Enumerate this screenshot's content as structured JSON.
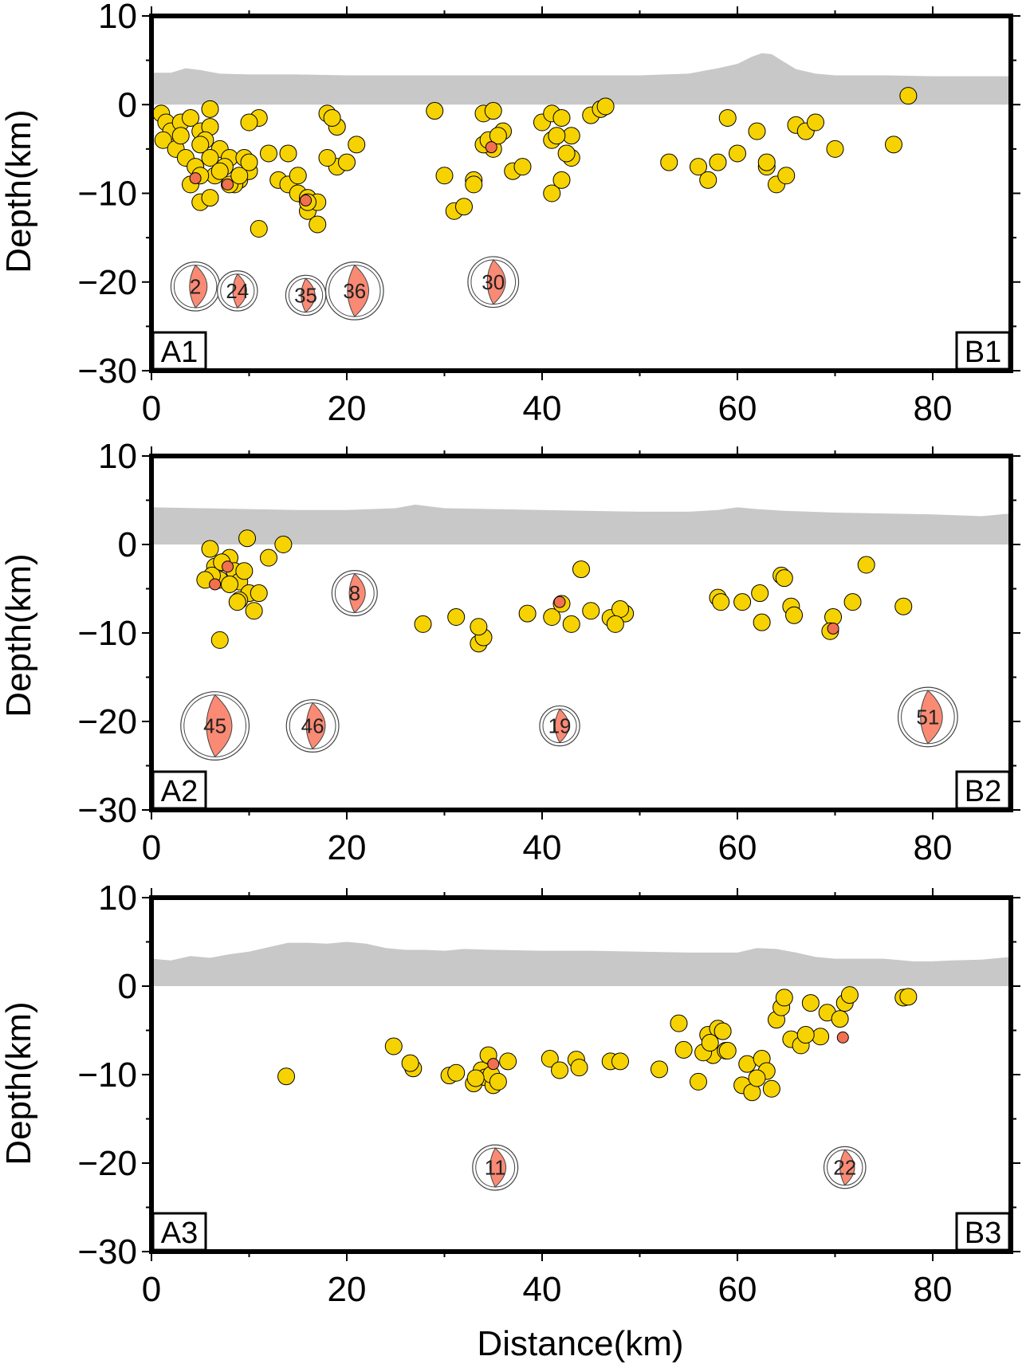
{
  "chart_data": [
    {
      "type": "scatter",
      "panel": "A1-B1",
      "xlabel": "",
      "ylabel": "Depth(km)",
      "xlim": [
        0,
        88
      ],
      "ylim": [
        -30,
        10
      ],
      "xticks": [
        "0",
        "20",
        "40",
        "60",
        "80"
      ],
      "yticks": [
        "10",
        "0",
        "−10",
        "−20",
        "−30"
      ],
      "start_label": "A1",
      "end_label": "B1",
      "topography": {
        "x": [
          0,
          2,
          3.5,
          5,
          7,
          10,
          15,
          20,
          25,
          30,
          35,
          40,
          45,
          50,
          55,
          58,
          60,
          61.5,
          62.5,
          63.5,
          64.5,
          66,
          68,
          70,
          75,
          80,
          85,
          88
        ],
        "y": [
          3.6,
          3.6,
          4.1,
          3.9,
          3.5,
          3.4,
          3.4,
          3.3,
          3.3,
          3.3,
          3.3,
          3.3,
          3.3,
          3.3,
          3.5,
          4.1,
          4.6,
          5.4,
          5.8,
          5.7,
          5.0,
          4.0,
          3.5,
          3.3,
          3.3,
          3.2,
          3.2,
          3.2
        ]
      },
      "series": [
        {
          "name": "",
          "color": "#f6d300",
          "x": [
            1,
            1.5,
            2,
            1.2,
            3,
            2.5,
            4,
            3.5,
            5,
            4.5,
            6,
            5.5,
            7,
            6.5,
            8,
            7.5,
            9,
            8.5,
            10,
            9.5,
            3,
            5,
            6,
            7,
            8,
            9,
            4,
            5,
            6,
            10,
            11,
            12,
            13,
            14,
            15,
            16,
            17,
            14,
            15,
            16,
            17,
            18,
            19,
            20,
            21,
            18,
            19,
            16,
            5,
            6,
            11,
            29,
            30,
            31,
            32,
            33,
            34,
            35,
            36,
            37,
            38,
            35,
            34,
            33,
            41,
            42,
            43,
            40,
            41,
            42,
            43,
            45,
            46,
            46.5,
            41,
            41.5,
            53,
            56,
            57,
            58,
            59,
            60,
            62,
            63,
            64,
            65,
            66,
            67,
            68,
            70,
            76,
            77.5,
            10,
            18.5,
            34.5,
            35.5,
            42.5,
            63
          ],
          "y": [
            -1,
            -2,
            -3,
            -4,
            -2,
            -5,
            -1.5,
            -6,
            -3,
            -7,
            -2.5,
            -4,
            -5,
            -8,
            -6,
            -7,
            -8.5,
            -9,
            -7.5,
            -6,
            -3.5,
            -4.5,
            -6,
            -7.5,
            -9,
            -8,
            -9,
            -11,
            -10.5,
            -6.5,
            -14,
            -5.5,
            -8.5,
            -9,
            -10,
            -12,
            -13.5,
            -5.5,
            -8,
            -10.5,
            -11,
            -1,
            -7,
            -6.5,
            -4.5,
            -6,
            -2.5,
            -11,
            -8,
            -0.5,
            -1.5,
            -0.7,
            -8,
            -12,
            -11.5,
            -8.5,
            -1,
            -0.7,
            -3,
            -7.5,
            -7,
            -5,
            -4.5,
            -9,
            -10,
            -8.5,
            -6,
            -2,
            -1,
            -1.5,
            -3.5,
            -1.2,
            -0.5,
            -0.2,
            -4,
            -3.5,
            -6.5,
            -7,
            -8.5,
            -6.5,
            -1.5,
            -5.5,
            -3,
            -7,
            -9,
            -8,
            -2.3,
            -3,
            -2,
            -5,
            -4.5,
            1,
            -2,
            -1.5,
            -4,
            -3.5,
            -5.5,
            -6.5
          ]
        },
        {
          "name": "",
          "color": "#f07050",
          "x": [
            4.5,
            7.8,
            15.8,
            34.8
          ],
          "y": [
            -8.3,
            -9,
            -10.8,
            -4.8
          ]
        }
      ],
      "focal_mechanisms": [
        {
          "label": "2",
          "x": 4.5,
          "y": -20.5,
          "size": 2.4
        },
        {
          "label": "24",
          "x": 8.8,
          "y": -21,
          "size": 1.9
        },
        {
          "label": "35",
          "x": 15.8,
          "y": -21.5,
          "size": 1.9
        },
        {
          "label": "36",
          "x": 20.8,
          "y": -21,
          "size": 2.9
        },
        {
          "label": "30",
          "x": 35,
          "y": -20,
          "size": 2.5
        }
      ]
    },
    {
      "type": "scatter",
      "panel": "A2-B2",
      "xlabel": "",
      "ylabel": "Depth(km)",
      "xlim": [
        0,
        88
      ],
      "ylim": [
        -30,
        10
      ],
      "xticks": [
        "0",
        "20",
        "40",
        "60",
        "80"
      ],
      "yticks": [
        "10",
        "0",
        "−10",
        "−20",
        "−30"
      ],
      "start_label": "A2",
      "end_label": "B2",
      "topography": {
        "x": [
          0,
          5,
          10,
          15,
          20,
          25,
          27,
          30,
          35,
          40,
          45,
          50,
          55,
          58,
          60,
          62,
          65,
          70,
          75,
          80,
          85,
          88
        ],
        "y": [
          4.2,
          4.1,
          4.0,
          3.9,
          3.9,
          4.1,
          4.5,
          4.1,
          4.0,
          3.9,
          3.8,
          3.7,
          3.7,
          3.9,
          4.2,
          4.0,
          3.8,
          3.6,
          3.5,
          3.4,
          3.2,
          3.5
        ]
      },
      "series": [
        {
          "name": "",
          "color": "#f6d300",
          "x": [
            6,
            6.5,
            7,
            7.5,
            8,
            8.5,
            9,
            9.5,
            10,
            10.5,
            11,
            9,
            8,
            7,
            12,
            13.5,
            6.2,
            5.5,
            7.2,
            8.8,
            9.8,
            27.8,
            31.2,
            33.5,
            34,
            33.5,
            38.5,
            41,
            42,
            43,
            44,
            45,
            47,
            48.5,
            48,
            47.5,
            58,
            60.5,
            62.3,
            64.5,
            65.5,
            65.8,
            69.8,
            71.8,
            73.2,
            77,
            64.8,
            58.3,
            62.5,
            69.5
          ],
          "y": [
            -0.5,
            -2.5,
            -4,
            -2,
            -1.5,
            -3,
            -4.2,
            -3,
            -5.5,
            -7.5,
            -5.5,
            -6.3,
            -4.5,
            -10.8,
            -1.5,
            0,
            -3.5,
            -4,
            -2,
            -6.5,
            0.7,
            -9,
            -8.2,
            -11.2,
            -10.5,
            -9.3,
            -7.8,
            -8.2,
            -6.7,
            -9,
            -2.8,
            -7.5,
            -8.3,
            -7.8,
            -7.3,
            -9,
            -6,
            -6.5,
            -5.5,
            -3.5,
            -7,
            -8,
            -8.2,
            -6.5,
            -2.3,
            -7,
            -3.8,
            -6.5,
            -8.8,
            -9.8
          ]
        },
        {
          "name": "",
          "color": "#f07050",
          "x": [
            6.5,
            7.8,
            41.8,
            69.8
          ],
          "y": [
            -4.5,
            -2.5,
            -6.5,
            -9.5
          ]
        }
      ],
      "focal_mechanisms": [
        {
          "label": "45",
          "x": 6.5,
          "y": -20.5,
          "size": 3.5
        },
        {
          "label": "46",
          "x": 16.5,
          "y": -20.5,
          "size": 2.6
        },
        {
          "label": "8",
          "x": 20.8,
          "y": -5.5,
          "size": 2.2
        },
        {
          "label": "19",
          "x": 41.8,
          "y": -20.5,
          "size": 1.9
        },
        {
          "label": "51",
          "x": 79.5,
          "y": -19.5,
          "size": 3.0
        }
      ]
    },
    {
      "type": "scatter",
      "panel": "A3-B3",
      "xlabel": "Distance(km)",
      "ylabel": "Depth(km)",
      "xlim": [
        0,
        88
      ],
      "ylim": [
        -30,
        10
      ],
      "xticks": [
        "0",
        "20",
        "40",
        "60",
        "80"
      ],
      "yticks": [
        "10",
        "0",
        "−10",
        "−20",
        "−30"
      ],
      "start_label": "A3",
      "end_label": "B3",
      "topography": {
        "x": [
          0,
          2,
          4,
          6,
          8,
          10,
          12,
          14,
          16,
          18,
          20,
          22,
          24,
          26,
          28,
          30,
          32,
          35,
          40,
          45,
          50,
          55,
          60,
          62,
          64,
          66,
          68,
          70,
          75,
          78,
          80,
          82,
          85,
          88
        ],
        "y": [
          3.1,
          2.9,
          3.4,
          3.2,
          3.6,
          3.9,
          4.4,
          4.9,
          4.9,
          4.8,
          5.0,
          4.8,
          4.3,
          4.1,
          4.1,
          4.0,
          4.2,
          4.1,
          4.0,
          4.0,
          3.9,
          3.8,
          3.8,
          4.3,
          4.2,
          3.8,
          3.3,
          3.1,
          3.1,
          2.8,
          2.8,
          2.9,
          3.0,
          3.3
        ],
        "note": ""
      },
      "series": [
        {
          "name": "",
          "color": "#f6d300",
          "x": [
            13.8,
            24.8,
            26.8,
            26.5,
            30.5,
            31.2,
            33,
            33.8,
            34.5,
            34.2,
            35,
            36.5,
            40.8,
            41.8,
            43.5,
            43.8,
            47,
            48,
            52,
            54,
            54.5,
            56,
            57,
            57.5,
            56.5,
            58,
            58.5,
            58.8,
            59,
            60.5,
            61,
            61.5,
            62.5,
            63,
            62,
            63.5,
            64,
            64.5,
            64.8,
            65.5,
            66.5,
            67.5,
            68.5,
            67,
            69.2,
            70.5,
            71,
            71.5,
            77,
            77.5,
            34.8,
            35.5,
            33.2,
            57.2
          ],
          "y": [
            -10.2,
            -6.8,
            -9.3,
            -8.7,
            -10.1,
            -9.8,
            -11,
            -9.5,
            -7.8,
            -10.3,
            -11.2,
            -8.5,
            -8.2,
            -9.5,
            -8.3,
            -9.2,
            -8.5,
            -8.5,
            -9.4,
            -4.2,
            -7.2,
            -10.8,
            -5.5,
            -7.8,
            -7.5,
            -4.8,
            -5.1,
            -7.3,
            -7.3,
            -11.2,
            -8.8,
            -12,
            -8.2,
            -9.6,
            -10.4,
            -11.6,
            -3.8,
            -2.4,
            -1.3,
            -6,
            -6.7,
            -1.9,
            -5.7,
            -5.5,
            -3,
            -3.7,
            -1.9,
            -1,
            -1.3,
            -1.2,
            -10,
            -10.8,
            -10.4,
            -6.4
          ]
        },
        {
          "name": "",
          "color": "#f07050",
          "x": [
            35,
            70.8
          ],
          "y": [
            -8.8,
            -5.8
          ]
        }
      ],
      "focal_mechanisms": [
        {
          "label": "11",
          "x": 35.2,
          "y": -20.5,
          "size": 2.2
        },
        {
          "label": "22",
          "x": 71,
          "y": -20.5,
          "size": 2.0
        }
      ]
    }
  ]
}
